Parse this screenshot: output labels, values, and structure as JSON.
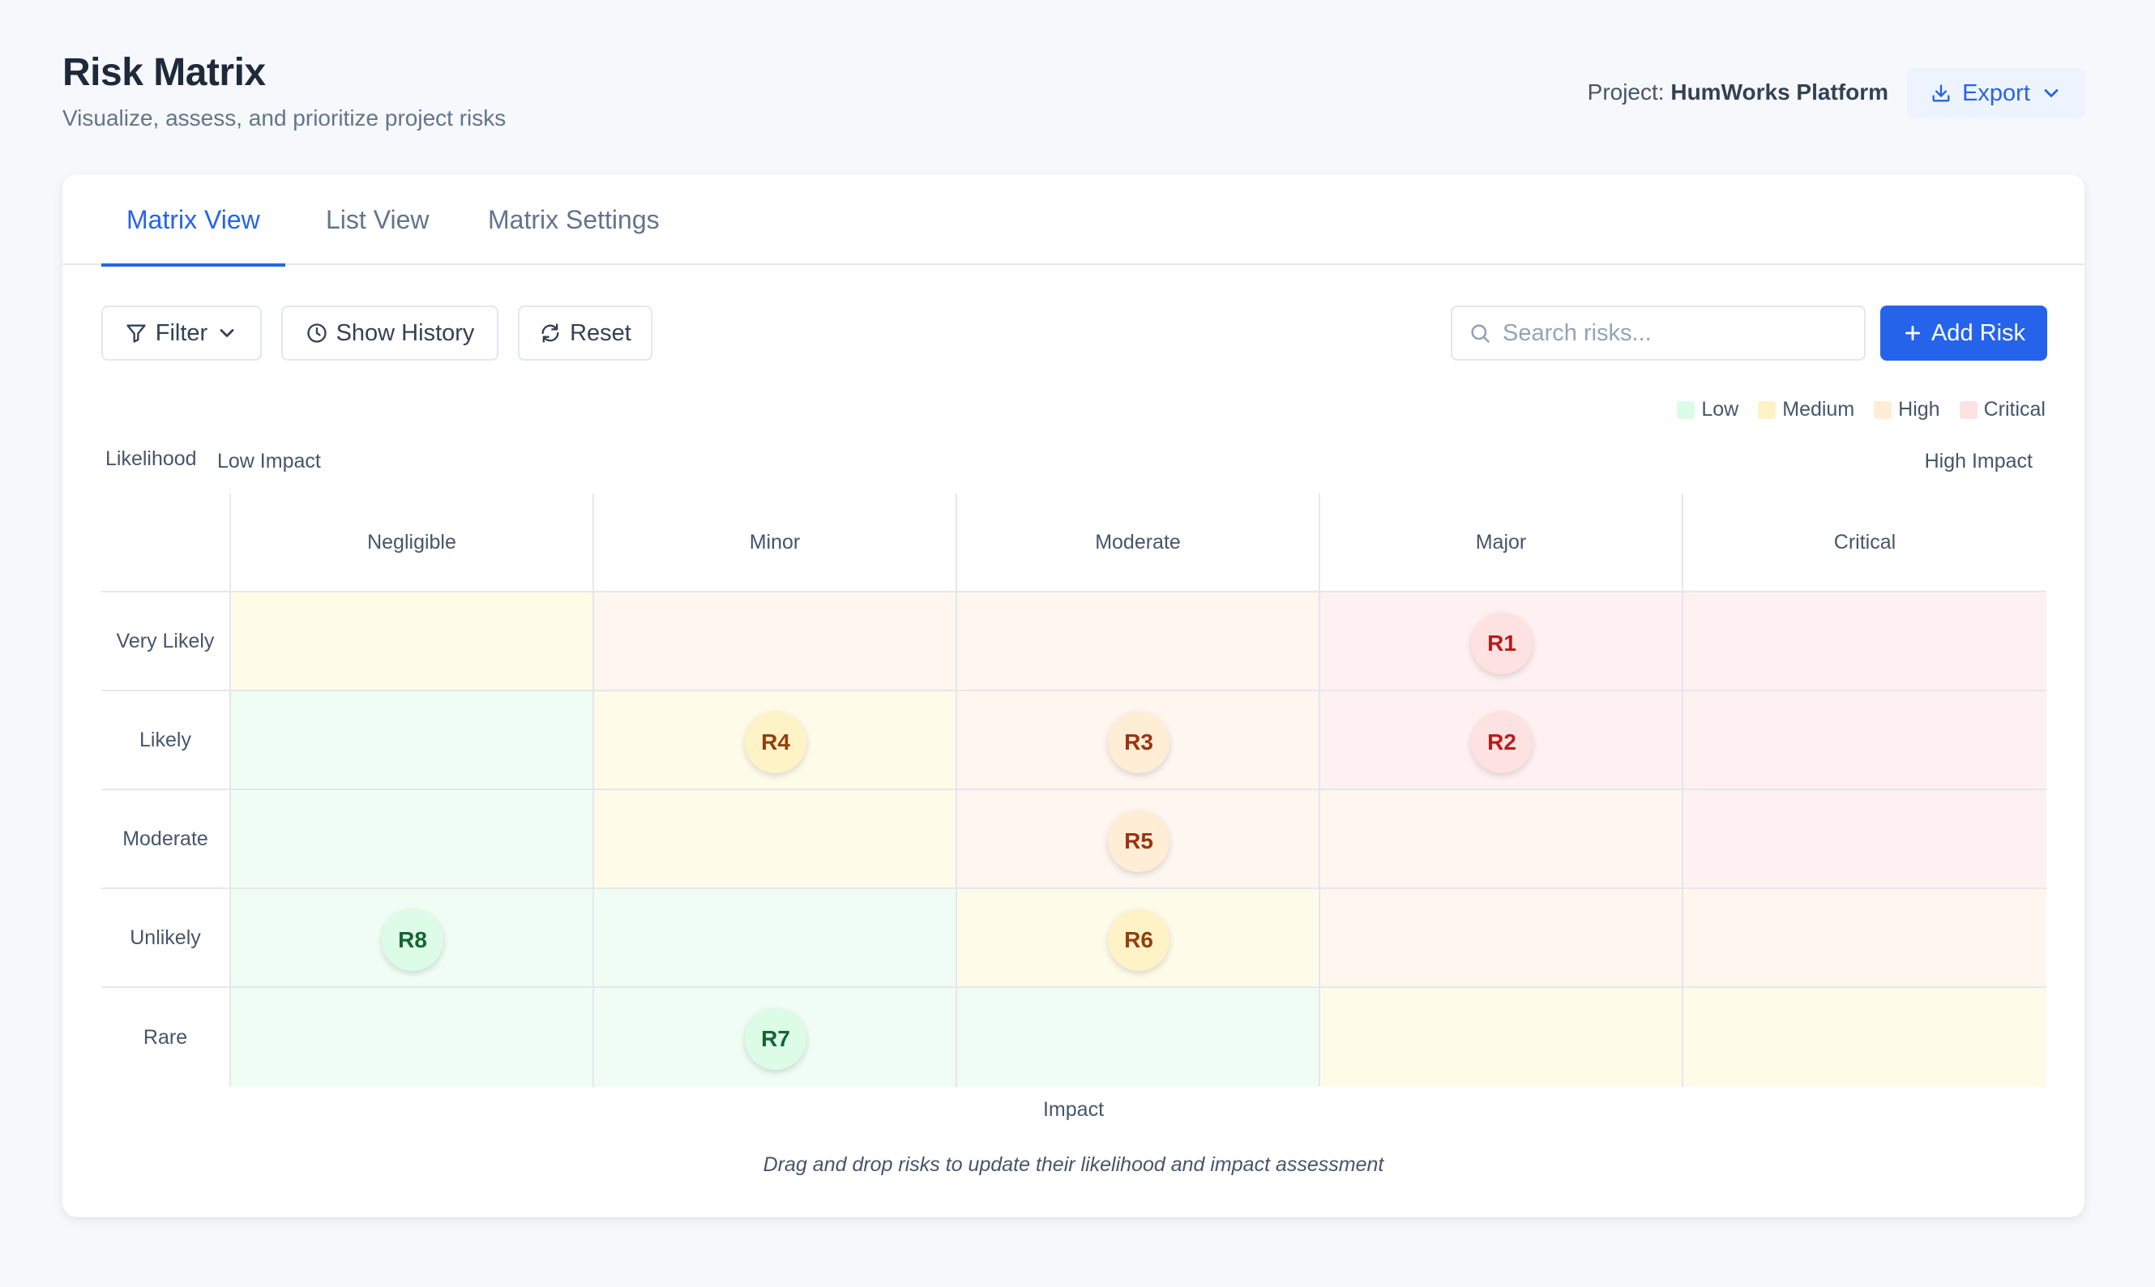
{
  "header": {
    "title": "Risk Matrix",
    "subtitle": "Visualize, assess, and prioritize project risks",
    "project_prefix": "Project:",
    "project_name": "HumWorks Platform",
    "export_label": "Export"
  },
  "tabs": [
    {
      "label": "Matrix View",
      "active": true
    },
    {
      "label": "List View",
      "active": false
    },
    {
      "label": "Matrix Settings",
      "active": false
    }
  ],
  "toolbar": {
    "filter_label": "Filter",
    "history_label": "Show History",
    "reset_label": "Reset",
    "search_placeholder": "Search risks...",
    "add_label": "Add Risk"
  },
  "legend": [
    {
      "label": "Low",
      "color": "#dcfce7"
    },
    {
      "label": "Medium",
      "color": "#fef3c7"
    },
    {
      "label": "High",
      "color": "#ffedd5"
    },
    {
      "label": "Critical",
      "color": "#fee2e2"
    }
  ],
  "axes": {
    "likelihood_label": "Likelihood",
    "low_impact_label": "Low Impact",
    "high_impact_label": "High Impact",
    "impact_label": "Impact"
  },
  "matrix": {
    "columns": [
      "Negligible",
      "Minor",
      "Moderate",
      "Major",
      "Critical"
    ],
    "rows": [
      "Very Likely",
      "Likely",
      "Moderate",
      "Unlikely",
      "Rare"
    ],
    "cell_levels": [
      [
        "medium",
        "high",
        "high",
        "critical",
        "critical"
      ],
      [
        "low",
        "medium",
        "high",
        "critical",
        "critical"
      ],
      [
        "low",
        "medium",
        "high",
        "high",
        "critical"
      ],
      [
        "low",
        "low",
        "medium",
        "high",
        "high"
      ],
      [
        "low",
        "low",
        "low",
        "medium",
        "medium"
      ]
    ],
    "level_colors": {
      "low": "#f0fdf4",
      "medium": "#fefbe9",
      "high": "#fff6ef",
      "critical": "#fff1f1"
    }
  },
  "risks": [
    {
      "id": "R1",
      "row": 0,
      "col": 3,
      "level": "critical"
    },
    {
      "id": "R2",
      "row": 1,
      "col": 3,
      "level": "critical"
    },
    {
      "id": "R3",
      "row": 1,
      "col": 2,
      "level": "high"
    },
    {
      "id": "R4",
      "row": 1,
      "col": 1,
      "level": "medium"
    },
    {
      "id": "R5",
      "row": 2,
      "col": 2,
      "level": "high"
    },
    {
      "id": "R6",
      "row": 3,
      "col": 2,
      "level": "medium"
    },
    {
      "id": "R7",
      "row": 4,
      "col": 1,
      "level": "low"
    },
    {
      "id": "R8",
      "row": 3,
      "col": 0,
      "level": "low"
    }
  ],
  "risk_styles": {
    "low": {
      "bg": "#dcfce7",
      "fg": "#166534"
    },
    "medium": {
      "bg": "#fef3c7",
      "fg": "#92400e"
    },
    "high": {
      "bg": "#ffedd5",
      "fg": "#9a3412"
    },
    "critical": {
      "bg": "#fee2e2",
      "fg": "#b91c1c"
    }
  },
  "hint": "Drag and drop risks to update their likelihood and impact assessment"
}
